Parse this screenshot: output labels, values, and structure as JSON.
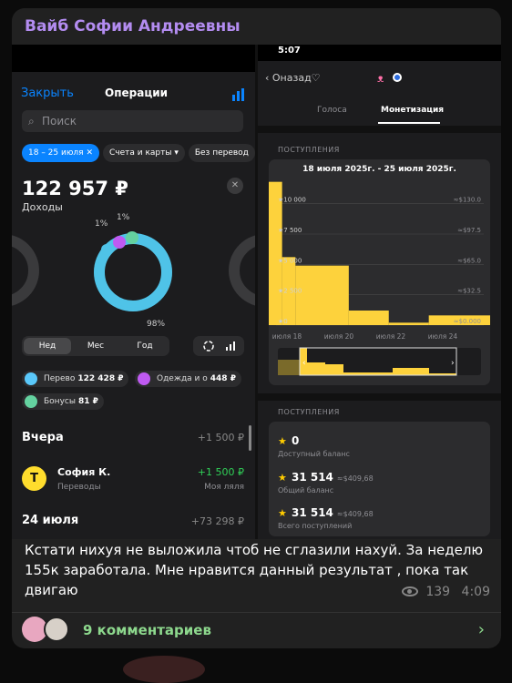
{
  "post": {
    "channel": "Вайб Софии Андреевны",
    "caption": "Кстати нихуя не выложила чтоб не сглазили нахуй. За неделю 155к заработала. Мне нравится данный результат , пока так двигаю",
    "views": "139",
    "time": "4:09",
    "comments": "9 комментариев"
  },
  "left_app": {
    "close": "Закрыть",
    "title": "Операции",
    "search_placeholder": "Поиск",
    "chips": [
      "18 – 25 июля ✕",
      "Счета и карты ▾",
      "Без перевод"
    ],
    "total": "122 957 ₽",
    "total_label": "Доходы",
    "donut_labels": [
      "1%",
      "1%",
      "98%"
    ],
    "segments": [
      "Нед",
      "Мес",
      "Год"
    ],
    "categories": [
      {
        "name": "Перево",
        "value": "122 428 ₽",
        "color": "#5ac8fa"
      },
      {
        "name": "Одежда и о",
        "value": "448 ₽",
        "color": "#bf5af2"
      },
      {
        "name": "Бонусы",
        "value": "81 ₽",
        "color": "#64d2a0"
      }
    ],
    "day1": "Вчера",
    "day1_amount": "+1 500 ₽",
    "tx": {
      "avatar": "Т",
      "name": "София К.",
      "category": "Переводы",
      "amount": "+1 500 ₽",
      "account": "Моя ляля"
    },
    "day2": "24 июля",
    "day2_amount": "+73 298 ₽"
  },
  "right_app": {
    "time": "5:07",
    "back": "‹ Оназад♡",
    "tabs": [
      "Голоса",
      "Монетизация"
    ],
    "section_income": "ПОСТУПЛЕНИЯ",
    "section_income2": "ПОСТУПЛЕНИЯ",
    "chart_title": "18 июля 2025г. - 25 июля 2025г.",
    "balances": [
      {
        "value": "0",
        "usd": "",
        "label": "Доступный баланс"
      },
      {
        "value": "31 514",
        "usd": "≈$409,68",
        "label": "Общий баланс"
      },
      {
        "value": "31 514",
        "usd": "≈$409,68",
        "label": "Всего поступлений"
      }
    ]
  },
  "chart_data": {
    "type": "bar",
    "title": "18 июля 2025г. - 25 июля 2025г.",
    "y_tick_labels": [
      "10 000",
      "7 500",
      "5 000",
      "2 500",
      "0"
    ],
    "y_ticks": [
      10000,
      7500,
      5000,
      2500,
      0
    ],
    "y_usd_labels": [
      "≈$130.0",
      "≈$97.5",
      "≈$65.0",
      "≈$32.5",
      "≈$0.000"
    ],
    "x_tick_labels": [
      "июля 18",
      "июля 20",
      "июля 22",
      "июля 24"
    ],
    "ylim": [
      0,
      12000
    ],
    "bars": [
      {
        "x0": 0,
        "x1": 0.5,
        "value": 11800
      },
      {
        "x0": 0.5,
        "x1": 1,
        "value": 5600
      },
      {
        "x0": 1,
        "x1": 3,
        "value": 4900
      },
      {
        "x0": 3,
        "x1": 4.5,
        "value": 1200
      },
      {
        "x0": 4.5,
        "x1": 6,
        "value": 200
      },
      {
        "x0": 6,
        "x1": 8.3,
        "value": 800
      }
    ],
    "x_min": 0,
    "x_max": 8.3,
    "colors": {
      "bar": "#fdd23c"
    }
  }
}
